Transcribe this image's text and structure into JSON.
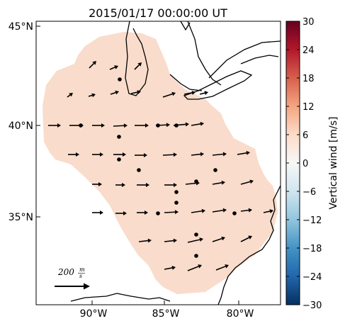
{
  "map": {
    "title": "2015/01/17 00:00:00 UT",
    "lat_labels": [
      "45°N",
      "40°N",
      "35°N"
    ],
    "lon_labels": [
      "90°W",
      "85°W",
      "80°W"
    ],
    "scale_label_num": "200",
    "scale_label_unit_top": "m",
    "scale_label_unit_bottom": "s"
  },
  "colorbar": {
    "label": "Vertical wind [m/s]",
    "ticks": [
      "30",
      "24",
      "18",
      "12",
      "6",
      "0",
      "−6",
      "−12",
      "−18",
      "−24",
      "−30"
    ],
    "range": [
      -30,
      30
    ],
    "colormap": "RdBu_r"
  },
  "field": {
    "fill_color": "#f9dccb",
    "value_approx": 6
  },
  "colors": {
    "arrow": "#000000",
    "coast": "#000000"
  }
}
